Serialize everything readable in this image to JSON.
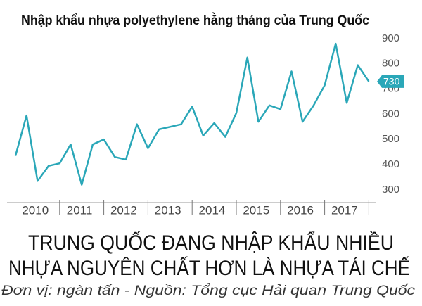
{
  "chart_data": {
    "type": "line",
    "title": "Nhập khẩu nhựa polyethylene hằng tháng của Trung Quốc",
    "headline": [
      "TRUNG QUỐC ĐANG NHẬP KHẨU NHIỀU",
      "NHỰA NGUYÊN CHẤT HƠN LÀ NHỰA TÁI CHẾ"
    ],
    "source": "Đơn vị: ngàn tấn - Nguồn: Tổng cục Hải quan Trung Quốc",
    "year_labels": [
      "2010",
      "2011",
      "2012",
      "2013",
      "2014",
      "2015",
      "2016",
      "2017"
    ],
    "color": "#2aa7b8",
    "values": [
      435,
      595,
      335,
      395,
      405,
      480,
      320,
      480,
      500,
      430,
      420,
      560,
      465,
      540,
      550,
      560,
      630,
      515,
      565,
      510,
      605,
      825,
      570,
      635,
      620,
      770,
      570,
      635,
      715,
      880,
      645,
      795,
      730
    ],
    "ylim": [
      250,
      920
    ],
    "yticks": [
      300,
      400,
      500,
      600,
      700,
      800,
      900
    ],
    "grid": false
  }
}
